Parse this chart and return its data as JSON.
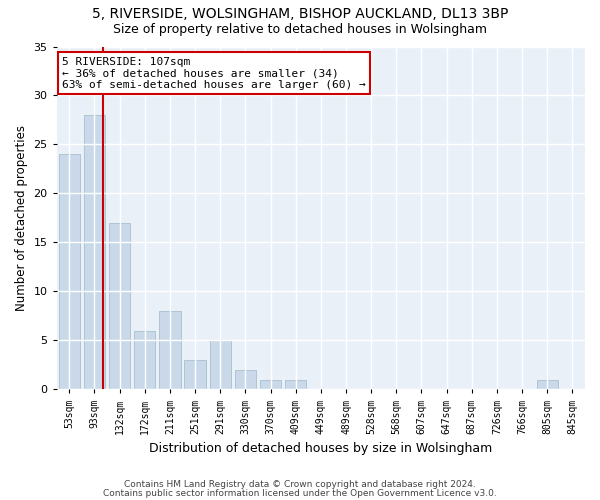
{
  "title_line1": "5, RIVERSIDE, WOLSINGHAM, BISHOP AUCKLAND, DL13 3BP",
  "title_line2": "Size of property relative to detached houses in Wolsingham",
  "xlabel": "Distribution of detached houses by size in Wolsingham",
  "ylabel": "Number of detached properties",
  "bar_color": "#c9d9ea",
  "bar_edge_color": "#a8bfcf",
  "background_color": "#eaf0f8",
  "grid_color": "#ffffff",
  "categories": [
    "53sqm",
    "93sqm",
    "132sqm",
    "172sqm",
    "211sqm",
    "251sqm",
    "291sqm",
    "330sqm",
    "370sqm",
    "409sqm",
    "449sqm",
    "489sqm",
    "528sqm",
    "568sqm",
    "607sqm",
    "647sqm",
    "687sqm",
    "726sqm",
    "766sqm",
    "805sqm",
    "845sqm"
  ],
  "values": [
    24,
    28,
    17,
    6,
    8,
    3,
    5,
    2,
    1,
    1,
    0,
    0,
    0,
    0,
    0,
    0,
    0,
    0,
    0,
    1,
    0
  ],
  "ylim": [
    0,
    35
  ],
  "yticks": [
    0,
    5,
    10,
    15,
    20,
    25,
    30,
    35
  ],
  "annotation_text": "5 RIVERSIDE: 107sqm\n← 36% of detached houses are smaller (34)\n63% of semi-detached houses are larger (60) →",
  "annotation_box_color": "#ffffff",
  "annotation_border_color": "#cc0000",
  "vline_color": "#cc0000",
  "footnote1": "Contains HM Land Registry data © Crown copyright and database right 2024.",
  "footnote2": "Contains public sector information licensed under the Open Government Licence v3.0."
}
